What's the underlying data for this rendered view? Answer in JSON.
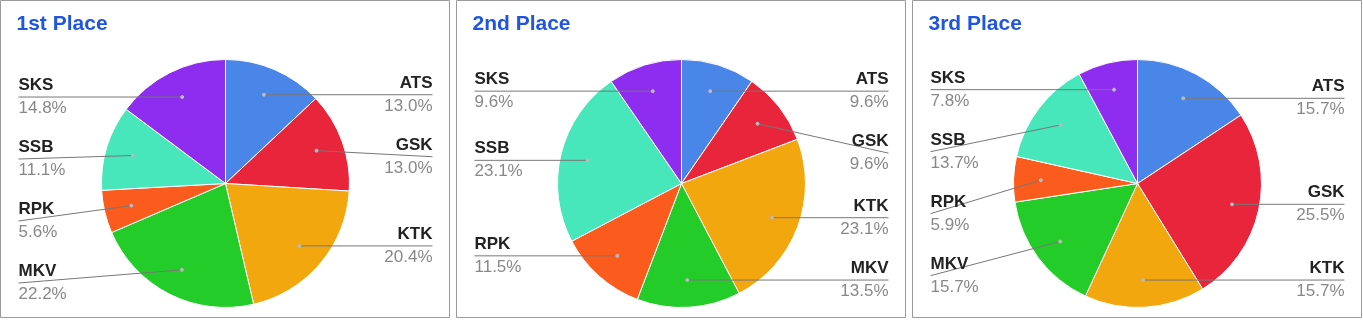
{
  "chart_data": [
    {
      "type": "pie",
      "title": "1st Place",
      "categories": [
        "ATS",
        "GSK",
        "KTK",
        "MKV",
        "RPK",
        "SSB",
        "SKS"
      ],
      "values": [
        13.0,
        13.0,
        20.4,
        22.2,
        5.6,
        11.1,
        14.8
      ],
      "value_labels": [
        "13.0%",
        "13.0%",
        "20.4%",
        "22.2%",
        "5.6%",
        "11.1%",
        "14.8%"
      ],
      "colors": [
        "#4a86e8",
        "#e8253a",
        "#f2a70f",
        "#24cc2a",
        "#fb5b1c",
        "#47e6bb",
        "#8e2cf0"
      ],
      "legend": false
    },
    {
      "type": "pie",
      "title": "2nd Place",
      "categories": [
        "ATS",
        "GSK",
        "KTK",
        "MKV",
        "RPK",
        "SSB",
        "SKS"
      ],
      "values": [
        9.6,
        9.6,
        23.1,
        13.5,
        11.5,
        23.1,
        9.6
      ],
      "value_labels": [
        "9.6%",
        "9.6%",
        "23.1%",
        "13.5%",
        "11.5%",
        "23.1%",
        "9.6%"
      ],
      "colors": [
        "#4a86e8",
        "#e8253a",
        "#f2a70f",
        "#24cc2a",
        "#fb5b1c",
        "#47e6bb",
        "#8e2cf0"
      ],
      "legend": false
    },
    {
      "type": "pie",
      "title": "3rd Place",
      "categories": [
        "ATS",
        "GSK",
        "KTK",
        "MKV",
        "RPK",
        "SSB",
        "SKS"
      ],
      "values": [
        15.7,
        25.5,
        15.7,
        15.7,
        5.9,
        13.7,
        7.8
      ],
      "value_labels": [
        "15.7%",
        "25.5%",
        "15.7%",
        "15.7%",
        "5.9%",
        "13.7%",
        "7.8%"
      ],
      "colors": [
        "#4a86e8",
        "#e8253a",
        "#f2a70f",
        "#24cc2a",
        "#fb5b1c",
        "#47e6bb",
        "#8e2cf0"
      ],
      "legend": false
    }
  ]
}
